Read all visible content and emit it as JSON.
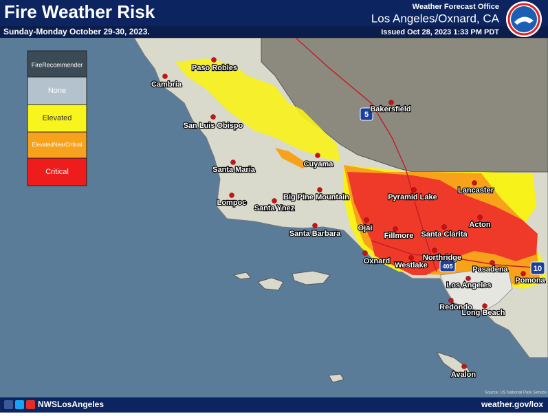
{
  "header": {
    "title": "Fire Weather Risk",
    "subtitle": "Sunday-Monday October 29-30, 2023.",
    "office": "Weather Forecast Office",
    "location": "Los Angeles/Oxnard, CA",
    "issued": "Issued Oct 28, 2023 1:33 PM PDT"
  },
  "legend": {
    "title": "FireRecommender",
    "items": [
      "None",
      "Elevated",
      "ElevatedNearCritical",
      "Critical"
    ]
  },
  "map": {
    "cities": [
      "Paso Robles",
      "Cambria",
      "San Luis Obispo",
      "Bakersfield",
      "Cuyama",
      "Santa Maria",
      "Big Pine Mountain",
      "Lompoc",
      "Santa Ynez",
      "Pyramid Lake",
      "Lancaster",
      "Acton",
      "Ojai",
      "Santa Barbara",
      "Fillmore",
      "Santa Clarita",
      "Oxnard",
      "Westlake",
      "Northridge",
      "Pasadena",
      "Los Angeles",
      "Pomona",
      "Redondo",
      "Long Beach",
      "Avalon"
    ],
    "highways": [
      "5",
      "405",
      "10"
    ],
    "source": "Source: US National Park Service"
  },
  "footer": {
    "social": "NWSLosAngeles",
    "url": "weather.gov/lox"
  }
}
